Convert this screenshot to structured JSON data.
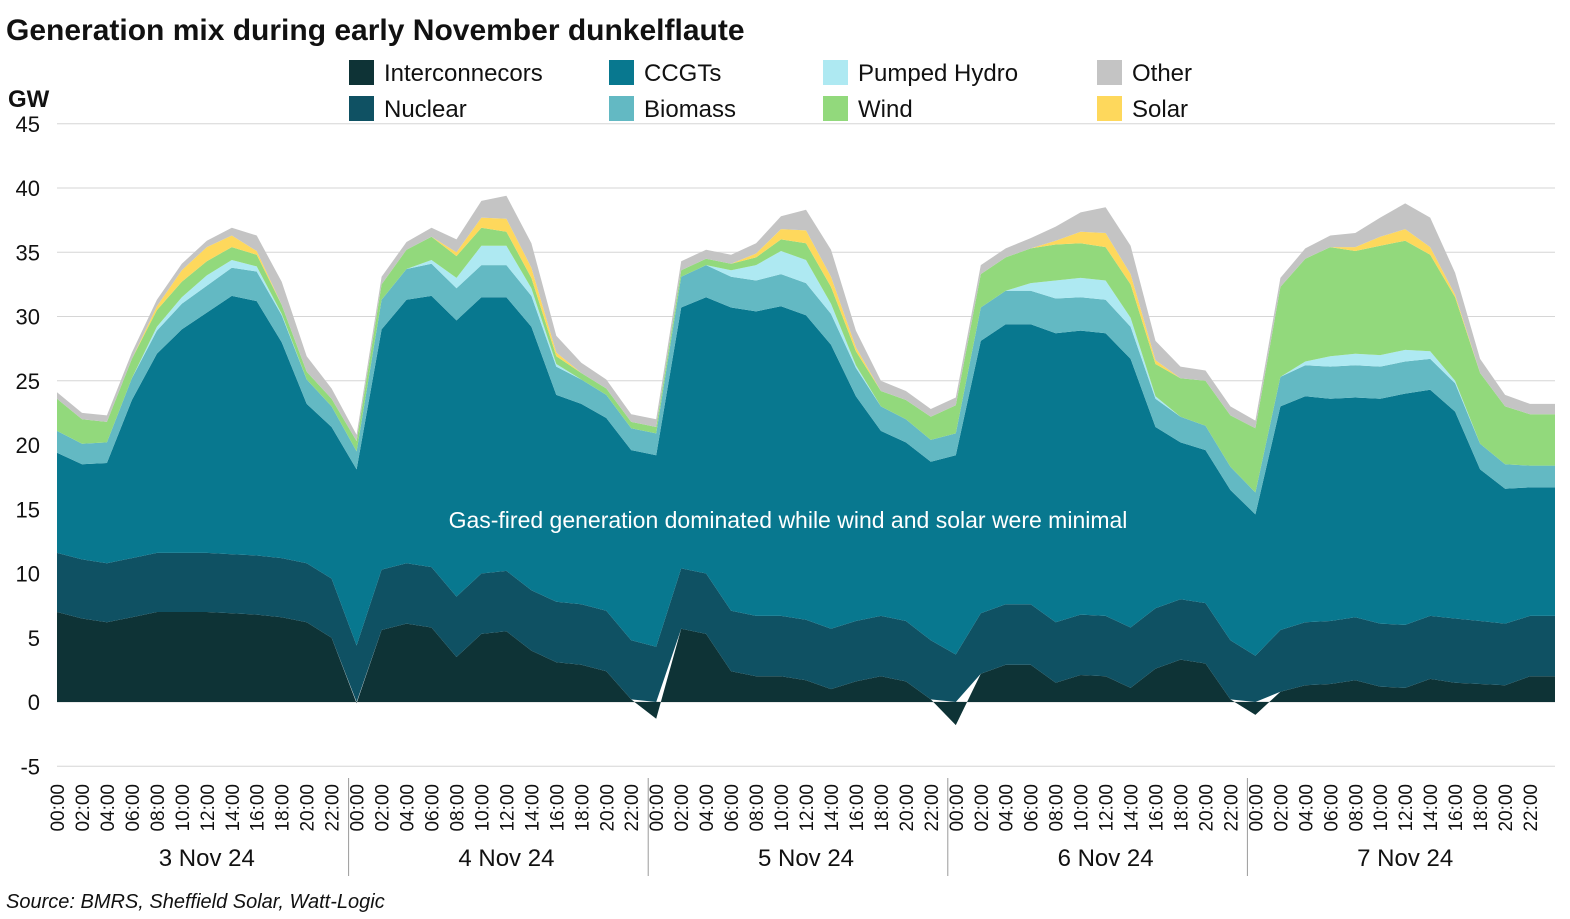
{
  "chart_data": {
    "type": "area",
    "stacked": true,
    "title": "Generation mix during early November dunkelflaute",
    "ylabel": "GW",
    "ylim": [
      -5,
      45
    ],
    "yticks": [
      -5,
      0,
      5,
      10,
      15,
      20,
      25,
      30,
      35,
      40,
      45
    ],
    "grid": "horizontal",
    "legend_position": "top",
    "days": [
      "3 Nov 24",
      "4 Nov 24",
      "5 Nov 24",
      "6 Nov 24",
      "7 Nov 24"
    ],
    "hour_ticks": [
      "00:00",
      "02:00",
      "04:00",
      "06:00",
      "08:00",
      "10:00",
      "12:00",
      "14:00",
      "16:00",
      "18:00",
      "20:00",
      "22:00"
    ],
    "annotation": "Gas-fired generation dominated while wind and solar were minimal",
    "source": "Source: BMRS, Sheffield Solar, Watt-Logic",
    "series_order": [
      "Interconnecors",
      "Nuclear",
      "CCGTs",
      "Biomass",
      "Pumped Hydro",
      "Wind",
      "Solar",
      "Other"
    ],
    "legend_order": [
      "Interconnecors",
      "CCGTs",
      "Pumped Hydro",
      "Other",
      "Nuclear",
      "Biomass",
      "Wind",
      "Solar"
    ],
    "colors": {
      "Interconnecors": "#0e3336",
      "Nuclear": "#0f5163",
      "CCGTs": "#08788f",
      "Biomass": "#63b9c3",
      "Pumped Hydro": "#aee9f2",
      "Wind": "#92d97c",
      "Solar": "#fed85c",
      "Other": "#c4c4c4"
    },
    "hours_per_day": [
      0,
      2,
      4,
      6,
      8,
      10,
      12,
      14,
      16,
      18,
      20,
      22
    ],
    "series": [
      {
        "name": "Interconnecors",
        "values": [
          [
            7.0,
            6.5,
            6.2,
            6.6,
            7.0,
            7.0,
            7.0,
            6.9,
            6.8,
            6.6,
            6.2,
            5.0
          ],
          [
            -0.1,
            5.6,
            6.1,
            5.8,
            3.5,
            5.3,
            5.5,
            4.0,
            3.1,
            2.9,
            2.4,
            0.2
          ],
          [
            -1.3,
            5.7,
            5.3,
            2.4,
            2.0,
            2.0,
            1.7,
            1.0,
            1.6,
            2.0,
            1.6,
            0.2
          ],
          [
            -1.8,
            2.2,
            2.9,
            2.9,
            1.5,
            2.1,
            2.0,
            1.1,
            2.6,
            3.3,
            3.0,
            0.2
          ],
          [
            -1.0,
            0.8,
            1.3,
            1.4,
            1.7,
            1.2,
            1.1,
            1.8,
            1.5,
            1.4,
            1.3,
            2.0
          ]
        ]
      },
      {
        "name": "Nuclear",
        "values": [
          [
            4.6,
            4.6,
            4.6,
            4.6,
            4.6,
            4.6,
            4.6,
            4.6,
            4.6,
            4.6,
            4.6,
            4.6
          ],
          [
            4.4,
            4.7,
            4.7,
            4.7,
            4.7,
            4.7,
            4.7,
            4.7,
            4.7,
            4.7,
            4.7,
            4.6
          ],
          [
            4.3,
            4.7,
            4.7,
            4.7,
            4.7,
            4.7,
            4.7,
            4.7,
            4.7,
            4.7,
            4.7,
            4.6
          ],
          [
            3.7,
            4.7,
            4.7,
            4.7,
            4.7,
            4.7,
            4.7,
            4.7,
            4.7,
            4.7,
            4.7,
            4.6
          ],
          [
            3.6,
            4.8,
            4.9,
            4.9,
            4.9,
            4.9,
            4.9,
            4.9,
            5.0,
            4.9,
            4.8,
            4.7
          ]
        ]
      },
      {
        "name": "CCGTs",
        "values": [
          [
            7.8,
            7.4,
            7.8,
            12.3,
            15.5,
            17.4,
            18.7,
            20.1,
            19.8,
            16.8,
            12.4,
            11.8
          ],
          [
            13.7,
            18.7,
            20.5,
            21.1,
            21.5,
            21.5,
            21.3,
            20.5,
            16.1,
            15.6,
            15.0,
            14.8
          ],
          [
            14.9,
            20.3,
            21.5,
            23.6,
            23.7,
            24.1,
            23.7,
            22.1,
            17.5,
            14.4,
            13.9,
            13.9
          ],
          [
            15.5,
            21.2,
            21.8,
            21.8,
            22.5,
            22.1,
            22.0,
            20.9,
            14.1,
            12.2,
            11.9,
            11.7
          ],
          [
            11.0,
            17.4,
            17.6,
            17.3,
            17.1,
            17.5,
            18.0,
            17.6,
            16.1,
            11.8,
            10.5,
            10.0
          ]
        ]
      },
      {
        "name": "Biomass",
        "values": [
          [
            1.7,
            1.6,
            1.6,
            1.7,
            1.8,
            2.0,
            2.1,
            2.2,
            2.3,
            2.1,
            1.9,
            1.6
          ],
          [
            1.4,
            2.3,
            2.4,
            2.5,
            2.5,
            2.5,
            2.5,
            2.4,
            2.2,
            1.9,
            1.8,
            1.7
          ],
          [
            1.7,
            2.4,
            2.5,
            2.4,
            2.4,
            2.5,
            2.5,
            2.4,
            2.2,
            1.9,
            1.8,
            1.7
          ],
          [
            1.7,
            2.6,
            2.6,
            2.6,
            2.7,
            2.6,
            2.6,
            2.5,
            2.2,
            2.0,
            1.9,
            1.8
          ],
          [
            1.7,
            2.3,
            2.4,
            2.5,
            2.5,
            2.5,
            2.5,
            2.4,
            2.2,
            2.0,
            1.9,
            1.7
          ]
        ]
      },
      {
        "name": "Pumped Hydro",
        "values": [
          [
            0.0,
            0.0,
            0.0,
            0.0,
            0.3,
            0.5,
            0.8,
            0.6,
            0.4,
            0.1,
            0.0,
            0.0
          ],
          [
            0.0,
            0.0,
            0.0,
            0.3,
            0.8,
            1.5,
            1.5,
            0.6,
            0.2,
            0.0,
            0.0,
            0.0
          ],
          [
            0.0,
            0.0,
            0.0,
            0.5,
            1.2,
            1.8,
            1.8,
            0.8,
            0.2,
            0.0,
            0.0,
            0.0
          ],
          [
            0.0,
            0.0,
            0.0,
            0.6,
            1.4,
            1.5,
            1.5,
            0.7,
            0.2,
            0.0,
            0.0,
            0.0
          ],
          [
            0.0,
            0.0,
            0.3,
            0.8,
            0.9,
            0.9,
            0.9,
            0.6,
            0.2,
            0.0,
            0.0,
            0.0
          ]
        ]
      },
      {
        "name": "Wind",
        "values": [
          [
            2.5,
            1.9,
            1.6,
            1.5,
            1.3,
            1.2,
            1.1,
            1.0,
            0.9,
            0.7,
            0.6,
            0.6
          ],
          [
            0.8,
            1.2,
            1.5,
            1.8,
            1.7,
            1.4,
            1.1,
            0.8,
            0.6,
            0.5,
            0.5,
            0.5
          ],
          [
            0.5,
            0.5,
            0.5,
            0.5,
            0.6,
            0.9,
            1.3,
            1.3,
            1.1,
            1.2,
            1.5,
            1.8
          ],
          [
            2.2,
            2.6,
            2.6,
            2.7,
            2.8,
            2.7,
            2.6,
            2.6,
            2.5,
            3.0,
            3.5,
            4.0
          ],
          [
            5.0,
            7.0,
            8.0,
            8.5,
            8.0,
            8.5,
            8.5,
            7.5,
            6.5,
            5.5,
            4.5,
            4.0
          ]
        ]
      },
      {
        "name": "Solar",
        "values": [
          [
            0.0,
            0.0,
            0.0,
            0.0,
            0.3,
            0.9,
            1.1,
            0.9,
            0.3,
            0.0,
            0.0,
            0.0
          ],
          [
            0.0,
            0.0,
            0.0,
            0.0,
            0.3,
            0.8,
            1.0,
            0.8,
            0.3,
            0.0,
            0.0,
            0.0
          ],
          [
            0.0,
            0.0,
            0.0,
            0.0,
            0.3,
            0.8,
            1.0,
            0.8,
            0.3,
            0.0,
            0.0,
            0.0
          ],
          [
            0.0,
            0.0,
            0.0,
            0.0,
            0.3,
            0.9,
            1.1,
            0.8,
            0.3,
            0.0,
            0.0,
            0.0
          ],
          [
            0.0,
            0.0,
            0.0,
            0.0,
            0.3,
            0.7,
            0.9,
            0.6,
            0.2,
            0.0,
            0.0,
            0.0
          ]
        ]
      },
      {
        "name": "Other",
        "values": [
          [
            0.5,
            0.5,
            0.5,
            0.5,
            0.5,
            0.5,
            0.5,
            0.6,
            1.2,
            1.8,
            1.2,
            0.8
          ],
          [
            0.5,
            0.6,
            0.6,
            0.7,
            1.0,
            1.3,
            1.8,
            1.9,
            1.3,
            0.8,
            0.7,
            0.6
          ],
          [
            0.6,
            0.7,
            0.7,
            0.7,
            0.8,
            1.0,
            1.6,
            2.1,
            1.3,
            0.8,
            0.7,
            0.6
          ],
          [
            0.6,
            0.7,
            0.7,
            0.8,
            1.1,
            1.5,
            2.0,
            2.2,
            1.5,
            0.9,
            0.8,
            0.7
          ],
          [
            0.6,
            0.7,
            0.8,
            0.9,
            1.1,
            1.5,
            2.0,
            2.3,
            1.7,
            1.1,
            0.9,
            0.8
          ]
        ]
      }
    ]
  }
}
